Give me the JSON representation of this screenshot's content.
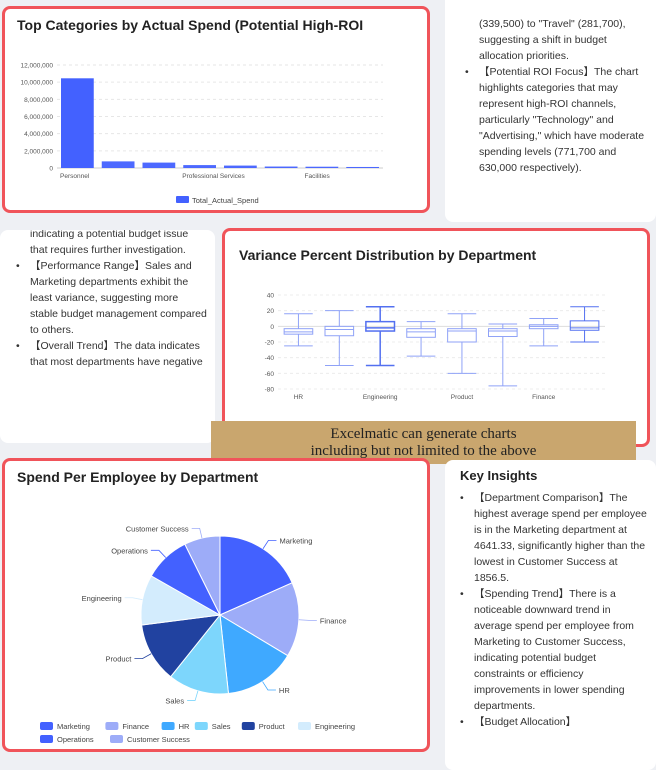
{
  "bar_card": {
    "title": "Top Categories by Actual Spend (Potential High-ROI"
  },
  "variance_card": {
    "title": "Variance Percent Distribution by Department"
  },
  "pie_card": {
    "title": "Spend Per Employee by Department"
  },
  "top_right_text": {
    "lines": [
      "(339,500) to \"Travel\" (281,700), suggesting a shift in budget allocation priorities."
    ],
    "bullets": [
      "【Potential ROI Focus】The chart highlights categories that may represent high-ROI channels, particularly \"Technology\" and \"Advertising,\" which have moderate spending levels (771,700 and 630,000 respectively)."
    ]
  },
  "mid_left_text": {
    "lines": [
      "indicating a potential budget issue that requires further investigation."
    ],
    "bullets": [
      "【Performance Range】Sales and Marketing departments exhibit the least variance, suggesting more stable budget management compared to others.",
      "【Overall Trend】The data indicates that most departments have negative"
    ]
  },
  "key_insights": {
    "title": "Key Insights",
    "bullets": [
      "【Department Comparison】The highest average spend per employee is in the Marketing department at 4641.33, significantly higher than the lowest in Customer Success at 1856.5.",
      "【Spending Trend】There is a noticeable downward trend in average spend per employee from Marketing to Customer Success, indicating potential budget constraints or efficiency improvements in lower spending departments.",
      "【Budget Allocation】"
    ]
  },
  "banner": {
    "line1": "Excelmatic can generate charts",
    "line2": "including but not limited to the above"
  },
  "colors": {
    "card_border": "#f0545a",
    "bar": "#4361ff",
    "banner": "#c9a66e"
  },
  "chart_data": [
    {
      "type": "bar",
      "categories": [
        "Personnel",
        "",
        "",
        "Professional Services",
        "",
        "",
        "Facilities",
        ""
      ],
      "values": [
        10450000,
        771700,
        630000,
        339500,
        281700,
        170000,
        150000,
        120000
      ],
      "legend": [
        "Total_Actual_Spend"
      ],
      "legend_position": "bottom",
      "ylim": [
        0,
        12000000
      ],
      "yticks": [
        "0",
        "2,000,000",
        "4,000,000",
        "6,000,000",
        "8,000,000",
        "10,000,000",
        "12,000,000"
      ],
      "grid": true
    },
    {
      "type": "boxplot",
      "categories": [
        "HR",
        "",
        "Engineering",
        "",
        "Product",
        "",
        "Finance",
        ""
      ],
      "boxes": [
        [
          -25,
          -10,
          -7,
          -3,
          16
        ],
        [
          -50,
          -12,
          -4,
          0,
          20
        ],
        [
          -50,
          -6,
          -2,
          6,
          25
        ],
        [
          -38,
          -14,
          -7,
          -3,
          6
        ],
        [
          -60,
          -20,
          -6,
          -3,
          16
        ],
        [
          -76,
          -13,
          -6,
          -3,
          3
        ],
        [
          -25,
          -3,
          0,
          2,
          10
        ],
        [
          -20,
          -5,
          -2,
          7,
          25
        ]
      ],
      "ylim": [
        -80,
        40
      ],
      "yticks": [
        "-80",
        "-60",
        "-40",
        "-20",
        "0",
        "20",
        "40"
      ],
      "grid": true
    },
    {
      "type": "pie",
      "categories": [
        "Marketing",
        "Finance",
        "HR",
        "Sales",
        "Product",
        "Engineering",
        "Operations",
        "Customer Success"
      ],
      "values": [
        4641.33,
        3870,
        3720,
        3150,
        3100,
        2600,
        2390,
        1856.5
      ],
      "colors": [
        "#4361ff",
        "#9dacf8",
        "#3fa9ff",
        "#7dd6fc",
        "#2142a0",
        "#d3ecfd",
        "#4361ff",
        "#9dacf8"
      ],
      "legend_position": "bottom"
    }
  ]
}
